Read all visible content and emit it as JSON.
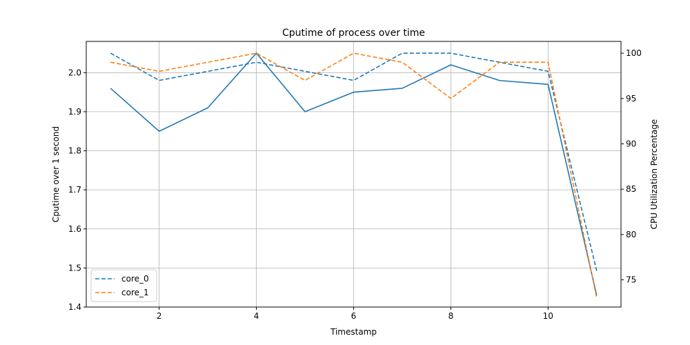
{
  "chart_data": {
    "type": "line",
    "title": "Cputime of process over time",
    "xlabel": "Timestamp",
    "ylabel_left": "Cputime over 1 second",
    "ylabel_right": "CPU Utilization Percentage",
    "xlim": [
      0.5,
      11.5
    ],
    "ylim_left": [
      1.4,
      2.08
    ],
    "ylim_right": [
      72,
      101.3
    ],
    "x_ticks": [
      2,
      4,
      6,
      8,
      10
    ],
    "y_ticks_left": [
      1.4,
      1.5,
      1.6,
      1.7,
      1.8,
      1.9,
      2.0
    ],
    "y_ticks_right": [
      75,
      80,
      85,
      90,
      95,
      100
    ],
    "grid": true,
    "legend_position": "lower-left",
    "x": [
      1,
      2,
      3,
      4,
      5,
      6,
      7,
      8,
      9,
      10,
      11
    ],
    "cputime_series": {
      "axis": "left",
      "style": "solid",
      "color": "#1f77b4",
      "values": [
        1.96,
        1.85,
        1.91,
        2.05,
        1.9,
        1.95,
        1.96,
        2.02,
        1.98,
        1.97,
        1.43
      ]
    },
    "series": [
      {
        "name": "core_0",
        "axis": "right",
        "style": "dashed",
        "color": "#1f77b4",
        "values": [
          100,
          97,
          98,
          99,
          98,
          97,
          100,
          100,
          99,
          98,
          76
        ]
      },
      {
        "name": "core_1",
        "axis": "right",
        "style": "dashed",
        "color": "#ff7f0e",
        "values": [
          99,
          98,
          99,
          100,
          97,
          100,
          99,
          95,
          99,
          99,
          73
        ]
      }
    ]
  }
}
